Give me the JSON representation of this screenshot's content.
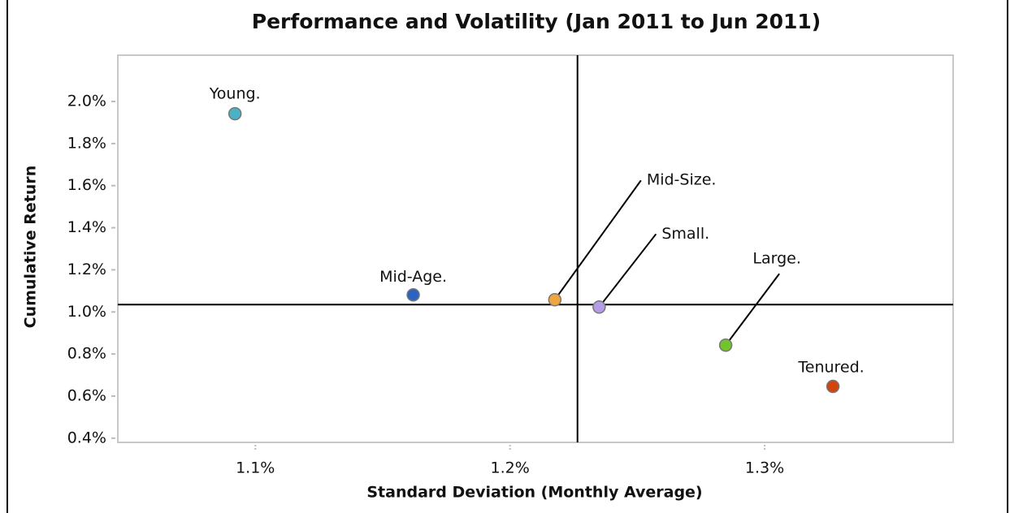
{
  "chart_data": {
    "type": "scatter",
    "title": "Performance and Volatility (Jan 2011 to Jun 2011)",
    "x_label": "Standard Deviation (Monthly Average)",
    "y_label": "Cumulative Return",
    "point_labels": [
      "Young.",
      "Mid-Age.",
      "Mid-Size.",
      "Small.",
      "Large.",
      "Tenured."
    ],
    "x": [
      1.092,
      1.162,
      1.2176,
      1.235,
      1.2847,
      1.3268
    ],
    "values": [
      1.942,
      1.081,
      1.058,
      1.023,
      0.842,
      0.646
    ],
    "colors": [
      "#4bb1c4",
      "#2a64c0",
      "#f0a640",
      "#b49ce6",
      "#6fc52a",
      "#d24310"
    ],
    "reference_x": 1.2265,
    "reference_y": 1.035,
    "xlim": [
      1.046,
      1.374
    ],
    "ylim": [
      0.38,
      2.22
    ],
    "xticks": [
      {
        "value": 1.1,
        "label": "1.1%"
      },
      {
        "value": 1.2,
        "label": "1.2%"
      },
      {
        "value": 1.3,
        "label": "1.3%"
      }
    ],
    "yticks": [
      {
        "value": 0.4,
        "label": "0.4%"
      },
      {
        "value": 0.6,
        "label": "0.6%"
      },
      {
        "value": 0.8,
        "label": "0.8%"
      },
      {
        "value": 1.0,
        "label": "1.0%"
      },
      {
        "value": 1.2,
        "label": "1.2%"
      },
      {
        "value": 1.4,
        "label": "1.4%"
      },
      {
        "value": 1.6,
        "label": "1.6%"
      },
      {
        "value": 1.8,
        "label": "1.8%"
      },
      {
        "value": 2.0,
        "label": "2.0%"
      }
    ]
  }
}
